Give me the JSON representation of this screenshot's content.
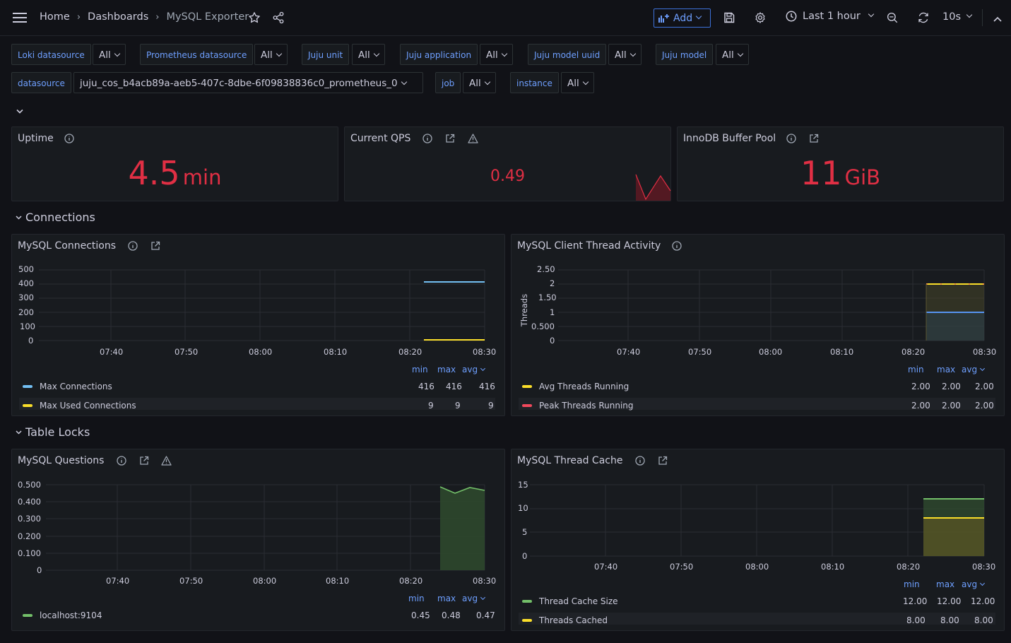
{
  "header": {
    "breadcrumb": [
      "Home",
      "Dashboards",
      "MySQL Exporter"
    ],
    "add_label": "Add",
    "time_range": "Last 1 hour",
    "refresh_interval": "10s"
  },
  "variables": {
    "row1": [
      {
        "label": "Loki datasource",
        "value": "All"
      },
      {
        "label": "Prometheus datasource",
        "value": "All"
      },
      {
        "label": "Juju unit",
        "value": "All"
      },
      {
        "label": "Juju application",
        "value": "All"
      },
      {
        "label": "Juju model uuid",
        "value": "All"
      },
      {
        "label": "Juju model",
        "value": "All"
      }
    ],
    "row2": [
      {
        "label": "datasource",
        "value": "juju_cos_b4acb89a-aeb5-407c-8dbe-6f09838836c0_prometheus_0"
      },
      {
        "label": "job",
        "value": "All"
      },
      {
        "label": "instance",
        "value": "All"
      }
    ]
  },
  "stats": {
    "uptime": {
      "title": "Uptime",
      "value": "4.5",
      "unit": "min"
    },
    "qps": {
      "title": "Current QPS",
      "value": "0.49"
    },
    "buffer_pool": {
      "title": "InnoDB Buffer Pool",
      "value": "11",
      "unit": "GiB"
    }
  },
  "rows": {
    "connections": "Connections",
    "table_locks": "Table Locks"
  },
  "legend_headers": {
    "min": "min",
    "max": "max",
    "avg": "avg"
  },
  "colors": {
    "accent": "#6e9fff",
    "stat_red": "#e02f44",
    "blue": "#73bff2",
    "yellow": "#fade2a",
    "green": "#73bf69",
    "red": "#f2495c"
  },
  "time_ticks": [
    "07:40",
    "07:50",
    "08:00",
    "08:10",
    "08:20",
    "08:30"
  ],
  "panels": {
    "connections": {
      "title": "MySQL Connections",
      "y_ticks": [
        "500",
        "400",
        "300",
        "200",
        "100",
        "0"
      ],
      "legend": [
        {
          "name": "Max Connections",
          "min": "416",
          "max": "416",
          "avg": "416"
        },
        {
          "name": "Max Used Connections",
          "min": "9",
          "max": "9",
          "avg": "9"
        }
      ]
    },
    "threads": {
      "title": "MySQL Client Thread Activity",
      "ylabel": "Threads",
      "y_ticks": [
        "2.50",
        "2",
        "1.50",
        "1",
        "0.500",
        "0"
      ],
      "legend": [
        {
          "name": "Avg Threads Running",
          "min": "2.00",
          "max": "2.00",
          "avg": "2.00"
        },
        {
          "name": "Peak Threads Running",
          "min": "2.00",
          "max": "2.00",
          "avg": "2.00"
        }
      ]
    },
    "questions": {
      "title": "MySQL Questions",
      "y_ticks": [
        "0.500",
        "0.400",
        "0.300",
        "0.200",
        "0.100",
        "0"
      ],
      "legend": [
        {
          "name": "localhost:9104",
          "min": "0.45",
          "max": "0.48",
          "avg": "0.47"
        }
      ]
    },
    "thread_cache": {
      "title": "MySQL Thread Cache",
      "y_ticks": [
        "15",
        "10",
        "5",
        "0"
      ],
      "legend": [
        {
          "name": "Thread Cache Size",
          "min": "12.00",
          "max": "12.00",
          "avg": "12.00"
        },
        {
          "name": "Threads Cached",
          "min": "8.00",
          "max": "8.00",
          "avg": "8.00"
        }
      ]
    }
  }
}
